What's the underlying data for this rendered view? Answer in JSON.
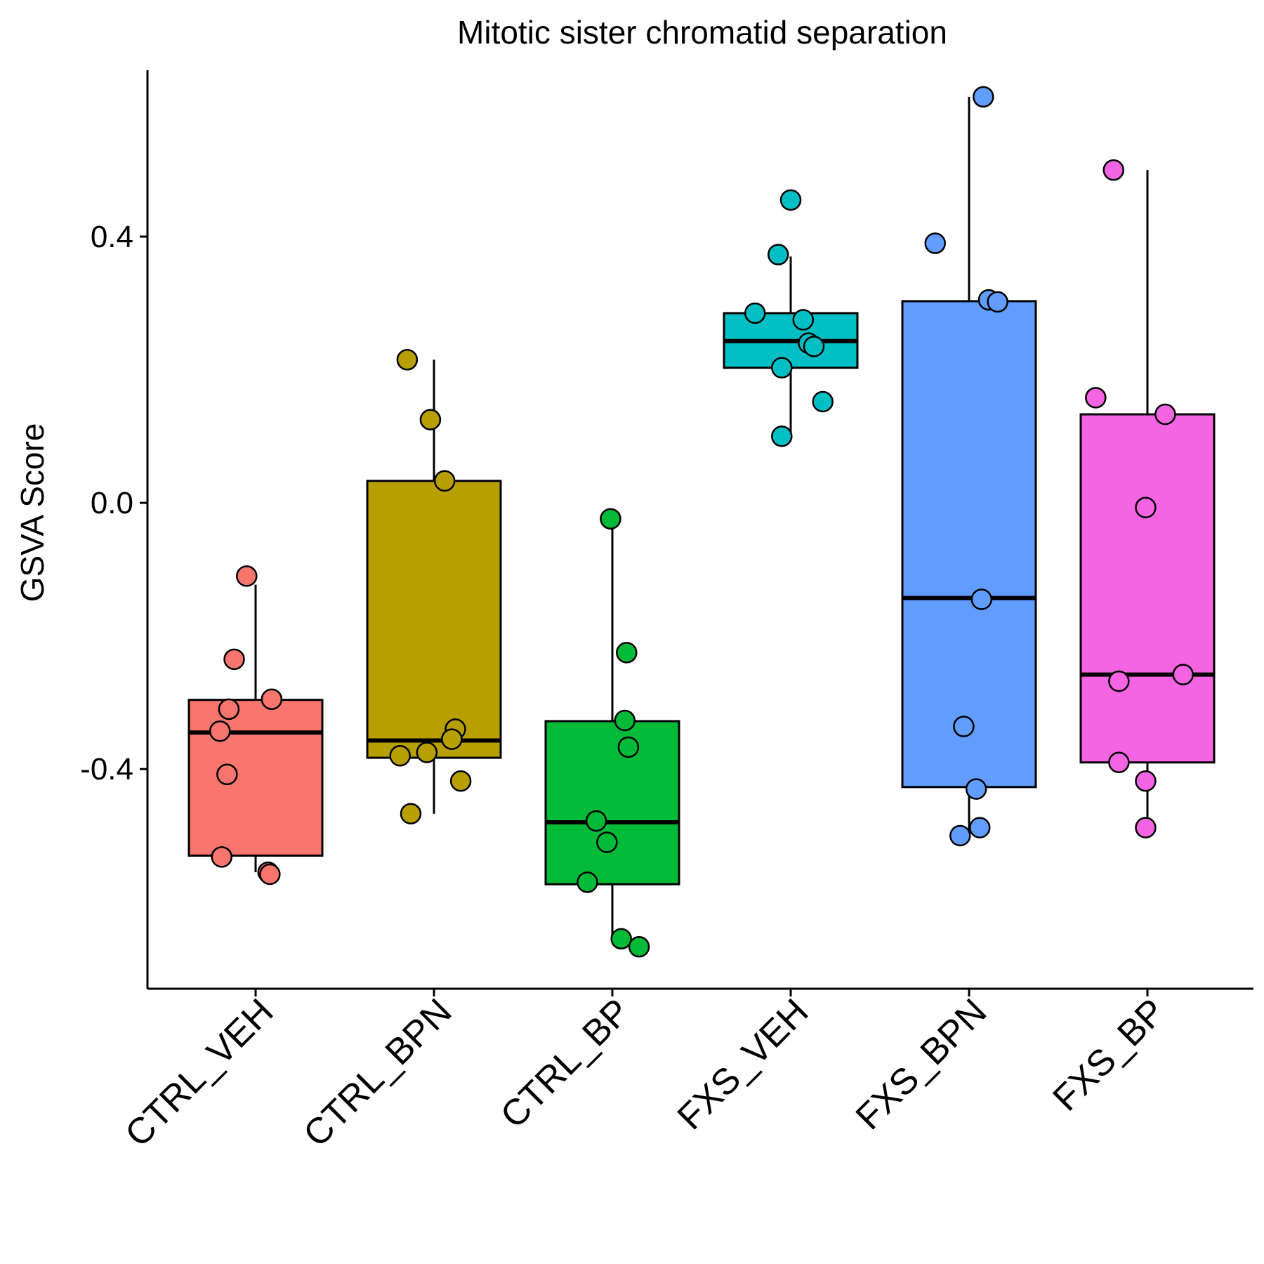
{
  "chart_data": {
    "type": "box",
    "title": "Mitotic sister chromatid separation",
    "xlabel": "",
    "ylabel": "GSVA Score",
    "ylim": [
      -0.73,
      0.65
    ],
    "yticks": [
      -0.4,
      0.0,
      0.4
    ],
    "ytick_labels": [
      "-0.4",
      "0.0",
      "0.4"
    ],
    "grid": false,
    "legend": "none",
    "categories": [
      "CTRL_VEH",
      "CTRL_BPN",
      "CTRL_BP",
      "FXS_VEH",
      "FXS_BPN",
      "FXS_BP"
    ],
    "colors": [
      "#F8766D",
      "#B79F00",
      "#00BA38",
      "#00BFC4",
      "#619CFF",
      "#F564E3"
    ],
    "boxes": [
      {
        "whisker_low": -0.555,
        "q1": -0.53,
        "median": -0.345,
        "q3": -0.296,
        "whisker_high": -0.123
      },
      {
        "whisker_low": -0.467,
        "q1": -0.383,
        "median": -0.357,
        "q3": 0.033,
        "whisker_high": 0.215
      },
      {
        "whisker_low": -0.65,
        "q1": -0.573,
        "median": -0.48,
        "q3": -0.328,
        "whisker_high": -0.027
      },
      {
        "whisker_low": 0.1,
        "q1": 0.203,
        "median": 0.243,
        "q3": 0.285,
        "whisker_high": 0.37
      },
      {
        "whisker_low": -0.5,
        "q1": -0.427,
        "median": -0.143,
        "q3": 0.303,
        "whisker_high": 0.61
      },
      {
        "whisker_low": -0.487,
        "q1": -0.39,
        "median": -0.258,
        "q3": 0.133,
        "whisker_high": 0.5
      }
    ],
    "points": [
      {
        "category": "CTRL_VEH",
        "jitter": -0.05,
        "y": -0.11
      },
      {
        "category": "CTRL_VEH",
        "jitter": -0.12,
        "y": -0.235
      },
      {
        "category": "CTRL_VEH",
        "jitter": 0.09,
        "y": -0.295
      },
      {
        "category": "CTRL_VEH",
        "jitter": -0.15,
        "y": -0.31
      },
      {
        "category": "CTRL_VEH",
        "jitter": -0.2,
        "y": -0.343
      },
      {
        "category": "CTRL_VEH",
        "jitter": -0.16,
        "y": -0.408
      },
      {
        "category": "CTRL_VEH",
        "jitter": -0.19,
        "y": -0.532
      },
      {
        "category": "CTRL_VEH",
        "jitter": 0.07,
        "y": -0.555
      },
      {
        "category": "CTRL_VEH",
        "jitter": 0.08,
        "y": -0.558
      },
      {
        "category": "CTRL_BPN",
        "jitter": -0.15,
        "y": 0.215
      },
      {
        "category": "CTRL_BPN",
        "jitter": -0.02,
        "y": 0.125
      },
      {
        "category": "CTRL_BPN",
        "jitter": 0.06,
        "y": 0.033
      },
      {
        "category": "CTRL_BPN",
        "jitter": 0.12,
        "y": -0.34
      },
      {
        "category": "CTRL_BPN",
        "jitter": 0.1,
        "y": -0.355
      },
      {
        "category": "CTRL_BPN",
        "jitter": -0.04,
        "y": -0.375
      },
      {
        "category": "CTRL_BPN",
        "jitter": -0.19,
        "y": -0.38
      },
      {
        "category": "CTRL_BPN",
        "jitter": 0.15,
        "y": -0.418
      },
      {
        "category": "CTRL_BPN",
        "jitter": -0.13,
        "y": -0.467
      },
      {
        "category": "CTRL_BP",
        "jitter": -0.01,
        "y": -0.024
      },
      {
        "category": "CTRL_BP",
        "jitter": 0.08,
        "y": -0.225
      },
      {
        "category": "CTRL_BP",
        "jitter": 0.07,
        "y": -0.327
      },
      {
        "category": "CTRL_BP",
        "jitter": 0.09,
        "y": -0.367
      },
      {
        "category": "CTRL_BP",
        "jitter": -0.09,
        "y": -0.478
      },
      {
        "category": "CTRL_BP",
        "jitter": -0.03,
        "y": -0.51
      },
      {
        "category": "CTRL_BP",
        "jitter": -0.14,
        "y": -0.57
      },
      {
        "category": "CTRL_BP",
        "jitter": 0.05,
        "y": -0.655
      },
      {
        "category": "CTRL_BP",
        "jitter": 0.15,
        "y": -0.667
      },
      {
        "category": "FXS_VEH",
        "jitter": 0.0,
        "y": 0.455
      },
      {
        "category": "FXS_VEH",
        "jitter": -0.07,
        "y": 0.373
      },
      {
        "category": "FXS_VEH",
        "jitter": -0.2,
        "y": 0.285
      },
      {
        "category": "FXS_VEH",
        "jitter": 0.07,
        "y": 0.275
      },
      {
        "category": "FXS_VEH",
        "jitter": 0.1,
        "y": 0.24
      },
      {
        "category": "FXS_VEH",
        "jitter": 0.13,
        "y": 0.235
      },
      {
        "category": "FXS_VEH",
        "jitter": -0.05,
        "y": 0.203
      },
      {
        "category": "FXS_VEH",
        "jitter": 0.18,
        "y": 0.152
      },
      {
        "category": "FXS_VEH",
        "jitter": -0.05,
        "y": 0.1
      },
      {
        "category": "FXS_BPN",
        "jitter": 0.08,
        "y": 0.61
      },
      {
        "category": "FXS_BPN",
        "jitter": -0.19,
        "y": 0.39
      },
      {
        "category": "FXS_BPN",
        "jitter": 0.11,
        "y": 0.305
      },
      {
        "category": "FXS_BPN",
        "jitter": 0.16,
        "y": 0.302
      },
      {
        "category": "FXS_BPN",
        "jitter": 0.07,
        "y": -0.145
      },
      {
        "category": "FXS_BPN",
        "jitter": -0.03,
        "y": -0.336
      },
      {
        "category": "FXS_BPN",
        "jitter": 0.04,
        "y": -0.43
      },
      {
        "category": "FXS_BPN",
        "jitter": 0.06,
        "y": -0.488
      },
      {
        "category": "FXS_BPN",
        "jitter": -0.05,
        "y": -0.5
      },
      {
        "category": "FXS_BP",
        "jitter": -0.19,
        "y": 0.5
      },
      {
        "category": "FXS_BP",
        "jitter": -0.29,
        "y": 0.158
      },
      {
        "category": "FXS_BP",
        "jitter": 0.1,
        "y": 0.133
      },
      {
        "category": "FXS_BP",
        "jitter": -0.01,
        "y": -0.007
      },
      {
        "category": "FXS_BP",
        "jitter": 0.2,
        "y": -0.258
      },
      {
        "category": "FXS_BP",
        "jitter": -0.16,
        "y": -0.268
      },
      {
        "category": "FXS_BP",
        "jitter": -0.16,
        "y": -0.39
      },
      {
        "category": "FXS_BP",
        "jitter": -0.01,
        "y": -0.418
      },
      {
        "category": "FXS_BP",
        "jitter": -0.01,
        "y": -0.488
      }
    ]
  }
}
